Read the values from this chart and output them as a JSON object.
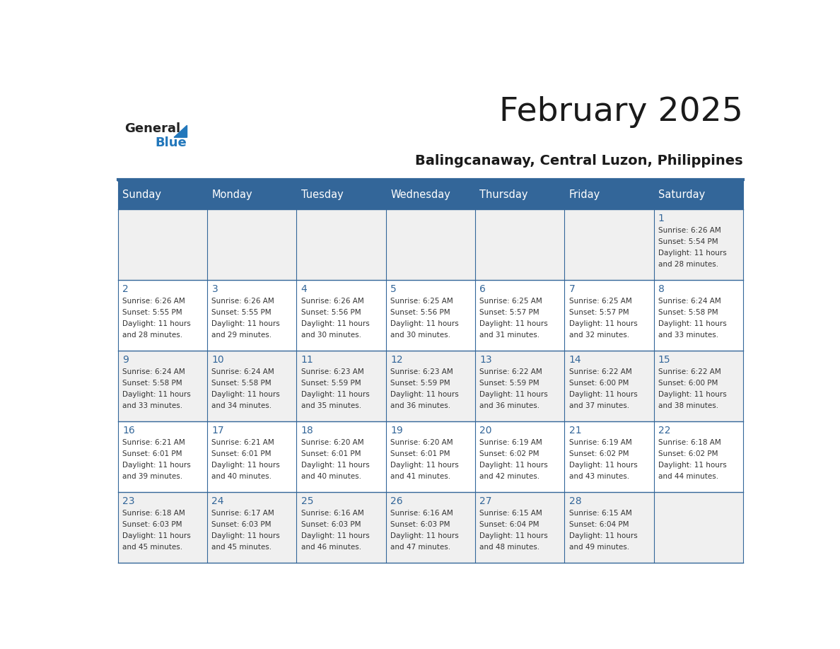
{
  "title": "February 2025",
  "subtitle": "Balingcanaway, Central Luzon, Philippines",
  "days_of_week": [
    "Sunday",
    "Monday",
    "Tuesday",
    "Wednesday",
    "Thursday",
    "Friday",
    "Saturday"
  ],
  "header_bg": "#336699",
  "header_text_color": "#ffffff",
  "odd_row_bg": "#f0f0f0",
  "even_row_bg": "#ffffff",
  "day_number_color": "#336699",
  "text_color": "#333333",
  "border_color": "#336699",
  "logo_general_color": "#222222",
  "logo_blue_color": "#2277bb",
  "calendar_data": [
    {
      "day": 1,
      "col": 6,
      "row": 0,
      "sunrise": "6:26 AM",
      "sunset": "5:54 PM",
      "daylight": "11 hours and 28 minutes."
    },
    {
      "day": 2,
      "col": 0,
      "row": 1,
      "sunrise": "6:26 AM",
      "sunset": "5:55 PM",
      "daylight": "11 hours and 28 minutes."
    },
    {
      "day": 3,
      "col": 1,
      "row": 1,
      "sunrise": "6:26 AM",
      "sunset": "5:55 PM",
      "daylight": "11 hours and 29 minutes."
    },
    {
      "day": 4,
      "col": 2,
      "row": 1,
      "sunrise": "6:26 AM",
      "sunset": "5:56 PM",
      "daylight": "11 hours and 30 minutes."
    },
    {
      "day": 5,
      "col": 3,
      "row": 1,
      "sunrise": "6:25 AM",
      "sunset": "5:56 PM",
      "daylight": "11 hours and 30 minutes."
    },
    {
      "day": 6,
      "col": 4,
      "row": 1,
      "sunrise": "6:25 AM",
      "sunset": "5:57 PM",
      "daylight": "11 hours and 31 minutes."
    },
    {
      "day": 7,
      "col": 5,
      "row": 1,
      "sunrise": "6:25 AM",
      "sunset": "5:57 PM",
      "daylight": "11 hours and 32 minutes."
    },
    {
      "day": 8,
      "col": 6,
      "row": 1,
      "sunrise": "6:24 AM",
      "sunset": "5:58 PM",
      "daylight": "11 hours and 33 minutes."
    },
    {
      "day": 9,
      "col": 0,
      "row": 2,
      "sunrise": "6:24 AM",
      "sunset": "5:58 PM",
      "daylight": "11 hours and 33 minutes."
    },
    {
      "day": 10,
      "col": 1,
      "row": 2,
      "sunrise": "6:24 AM",
      "sunset": "5:58 PM",
      "daylight": "11 hours and 34 minutes."
    },
    {
      "day": 11,
      "col": 2,
      "row": 2,
      "sunrise": "6:23 AM",
      "sunset": "5:59 PM",
      "daylight": "11 hours and 35 minutes."
    },
    {
      "day": 12,
      "col": 3,
      "row": 2,
      "sunrise": "6:23 AM",
      "sunset": "5:59 PM",
      "daylight": "11 hours and 36 minutes."
    },
    {
      "day": 13,
      "col": 4,
      "row": 2,
      "sunrise": "6:22 AM",
      "sunset": "5:59 PM",
      "daylight": "11 hours and 36 minutes."
    },
    {
      "day": 14,
      "col": 5,
      "row": 2,
      "sunrise": "6:22 AM",
      "sunset": "6:00 PM",
      "daylight": "11 hours and 37 minutes."
    },
    {
      "day": 15,
      "col": 6,
      "row": 2,
      "sunrise": "6:22 AM",
      "sunset": "6:00 PM",
      "daylight": "11 hours and 38 minutes."
    },
    {
      "day": 16,
      "col": 0,
      "row": 3,
      "sunrise": "6:21 AM",
      "sunset": "6:01 PM",
      "daylight": "11 hours and 39 minutes."
    },
    {
      "day": 17,
      "col": 1,
      "row": 3,
      "sunrise": "6:21 AM",
      "sunset": "6:01 PM",
      "daylight": "11 hours and 40 minutes."
    },
    {
      "day": 18,
      "col": 2,
      "row": 3,
      "sunrise": "6:20 AM",
      "sunset": "6:01 PM",
      "daylight": "11 hours and 40 minutes."
    },
    {
      "day": 19,
      "col": 3,
      "row": 3,
      "sunrise": "6:20 AM",
      "sunset": "6:01 PM",
      "daylight": "11 hours and 41 minutes."
    },
    {
      "day": 20,
      "col": 4,
      "row": 3,
      "sunrise": "6:19 AM",
      "sunset": "6:02 PM",
      "daylight": "11 hours and 42 minutes."
    },
    {
      "day": 21,
      "col": 5,
      "row": 3,
      "sunrise": "6:19 AM",
      "sunset": "6:02 PM",
      "daylight": "11 hours and 43 minutes."
    },
    {
      "day": 22,
      "col": 6,
      "row": 3,
      "sunrise": "6:18 AM",
      "sunset": "6:02 PM",
      "daylight": "11 hours and 44 minutes."
    },
    {
      "day": 23,
      "col": 0,
      "row": 4,
      "sunrise": "6:18 AM",
      "sunset": "6:03 PM",
      "daylight": "11 hours and 45 minutes."
    },
    {
      "day": 24,
      "col": 1,
      "row": 4,
      "sunrise": "6:17 AM",
      "sunset": "6:03 PM",
      "daylight": "11 hours and 45 minutes."
    },
    {
      "day": 25,
      "col": 2,
      "row": 4,
      "sunrise": "6:16 AM",
      "sunset": "6:03 PM",
      "daylight": "11 hours and 46 minutes."
    },
    {
      "day": 26,
      "col": 3,
      "row": 4,
      "sunrise": "6:16 AM",
      "sunset": "6:03 PM",
      "daylight": "11 hours and 47 minutes."
    },
    {
      "day": 27,
      "col": 4,
      "row": 4,
      "sunrise": "6:15 AM",
      "sunset": "6:04 PM",
      "daylight": "11 hours and 48 minutes."
    },
    {
      "day": 28,
      "col": 5,
      "row": 4,
      "sunrise": "6:15 AM",
      "sunset": "6:04 PM",
      "daylight": "11 hours and 49 minutes."
    }
  ]
}
